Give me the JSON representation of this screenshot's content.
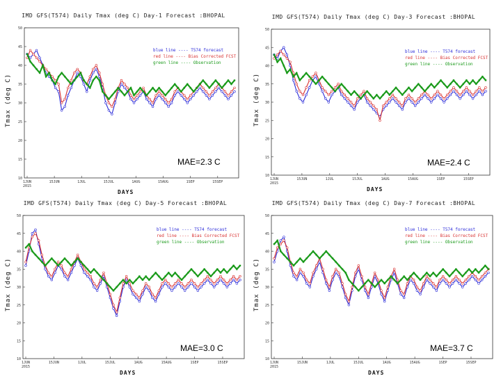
{
  "chart_data": [
    {
      "type": "line",
      "title": "IMD GFS(T574) Daily Tmax (deg C) Day-1 Forecast :BHOPAL",
      "ylabel": "Tmax  (deg C)",
      "xlabel": "DAYS",
      "ylim": [
        10,
        50
      ],
      "yticks": [
        "50",
        "45",
        "40",
        "35",
        "30",
        "25",
        "20",
        "15"
      ],
      "xticks": [
        "1JUN\n2015",
        "15JUN",
        "1JUL",
        "15JUL",
        "1AUG",
        "15AUG",
        "1SEP",
        "15SEP"
      ],
      "mae": "MAE=2.3 C",
      "legend": [
        {
          "name": "blue line",
          "desc": "T574 forecast",
          "color": "#2a2ad8"
        },
        {
          "name": "red line",
          "desc": "Bias Corrected FCST",
          "color": "#d83030"
        },
        {
          "name": "green line",
          "desc": "Observation",
          "color": "#1a9a1a"
        }
      ],
      "series": [
        {
          "name": "T574 forecast",
          "color": "#2a2ad8",
          "values": [
            43,
            42,
            43,
            44,
            42,
            40,
            38,
            37,
            36,
            34,
            33,
            28,
            29,
            32,
            34,
            36,
            38,
            37,
            35,
            33,
            36,
            38,
            39,
            37,
            34,
            30,
            28,
            27,
            30,
            33,
            35,
            34,
            33,
            31,
            30,
            31,
            32,
            33,
            31,
            30,
            29,
            31,
            32,
            31,
            30,
            29,
            30,
            32,
            33,
            32,
            31,
            30,
            31,
            32,
            33,
            34,
            33,
            32,
            31,
            32,
            33,
            34,
            33,
            32,
            31,
            32,
            33
          ]
        },
        {
          "name": "Bias Corrected FCST",
          "color": "#d83030",
          "values": [
            42,
            44,
            43,
            42,
            41,
            40,
            39,
            38,
            37,
            36,
            35,
            30,
            31,
            34,
            36,
            38,
            39,
            38,
            36,
            35,
            37,
            39,
            40,
            38,
            35,
            32,
            30,
            29,
            31,
            34,
            36,
            35,
            34,
            32,
            31,
            32,
            33,
            34,
            32,
            31,
            30,
            32,
            33,
            32,
            31,
            30,
            31,
            33,
            34,
            33,
            32,
            31,
            32,
            33,
            34,
            35,
            34,
            33,
            32,
            33,
            34,
            35,
            34,
            33,
            32,
            33,
            34
          ]
        },
        {
          "name": "Observation",
          "color": "#1a9a1a",
          "values": [
            43,
            41,
            40,
            39,
            38,
            40,
            37,
            38,
            36,
            35,
            37,
            38,
            37,
            36,
            35,
            36,
            37,
            38,
            36,
            35,
            34,
            36,
            37,
            36,
            33,
            32,
            31,
            32,
            33,
            34,
            33,
            32,
            33,
            34,
            32,
            33,
            34,
            33,
            32,
            33,
            34,
            33,
            34,
            33,
            32,
            33,
            34,
            35,
            34,
            33,
            34,
            35,
            34,
            33,
            34,
            35,
            36,
            35,
            34,
            35,
            36,
            35,
            34,
            35,
            36,
            35,
            36
          ]
        }
      ]
    },
    {
      "type": "line",
      "title": "IMD GFS(T574) Daily Tmax (deg C) Day-3 Forecast :BHOPAL",
      "ylabel": "Tmax  (deg C)",
      "xlabel": "DAYS",
      "ylim": [
        10,
        50
      ],
      "yticks": [
        "50",
        "45",
        "40",
        "35",
        "30",
        "25",
        "20",
        "15"
      ],
      "xticks": [
        "1JUN\n2015",
        "15JUN",
        "1JUL",
        "15JUL",
        "1AUG",
        "15AUG",
        "1SEP",
        "15SEP"
      ],
      "mae": "MAE=2.4 C",
      "legend": [
        {
          "name": "blue line",
          "desc": "T574 forecast",
          "color": "#2a2ad8"
        },
        {
          "name": "red line",
          "desc": "Bias Corrected FCST",
          "color": "#d83030"
        },
        {
          "name": "green line",
          "desc": "Observation",
          "color": "#1a9a1a"
        }
      ],
      "series": [
        {
          "name": "T574 forecast",
          "color": "#2a2ad8",
          "values": [
            43,
            42,
            44,
            45,
            43,
            40,
            36,
            33,
            31,
            30,
            32,
            34,
            36,
            37,
            35,
            33,
            31,
            30,
            32,
            33,
            34,
            32,
            31,
            30,
            29,
            28,
            30,
            31,
            32,
            30,
            29,
            28,
            27,
            26,
            28,
            29,
            30,
            31,
            30,
            29,
            28,
            30,
            31,
            30,
            29,
            30,
            31,
            32,
            31,
            30,
            31,
            32,
            31,
            30,
            31,
            32,
            33,
            32,
            31,
            32,
            33,
            32,
            31,
            32,
            33,
            32,
            33
          ]
        },
        {
          "name": "Bias Corrected FCST",
          "color": "#d83030",
          "values": [
            42,
            43,
            44,
            43,
            42,
            41,
            38,
            35,
            33,
            32,
            34,
            36,
            37,
            38,
            36,
            34,
            33,
            32,
            33,
            34,
            35,
            33,
            32,
            31,
            30,
            29,
            31,
            32,
            33,
            31,
            30,
            29,
            28,
            25,
            29,
            30,
            31,
            32,
            31,
            30,
            29,
            31,
            32,
            31,
            30,
            31,
            32,
            33,
            32,
            31,
            32,
            33,
            32,
            31,
            32,
            33,
            34,
            33,
            32,
            33,
            34,
            33,
            32,
            33,
            34,
            33,
            34
          ]
        },
        {
          "name": "Observation",
          "color": "#1a9a1a",
          "values": [
            43,
            41,
            42,
            40,
            38,
            39,
            37,
            38,
            36,
            37,
            38,
            37,
            36,
            35,
            36,
            37,
            36,
            35,
            34,
            33,
            34,
            35,
            34,
            33,
            32,
            33,
            32,
            31,
            32,
            33,
            32,
            31,
            32,
            31,
            32,
            33,
            32,
            33,
            34,
            33,
            32,
            33,
            34,
            33,
            34,
            35,
            34,
            33,
            34,
            35,
            34,
            35,
            36,
            35,
            34,
            35,
            36,
            35,
            34,
            35,
            36,
            35,
            36,
            35,
            36,
            37,
            36
          ]
        }
      ]
    },
    {
      "type": "line",
      "title": "IMD GFS(T574) Daily Tmax (deg C) Day-5 Forecast :BHOPAL",
      "ylabel": "Tmax  (deg C)",
      "xlabel": "DAYS",
      "ylim": [
        10,
        50
      ],
      "yticks": [
        "50",
        "45",
        "40",
        "35",
        "30",
        "25",
        "20",
        "15"
      ],
      "xticks": [
        "1JUN\n2015",
        "15JUN",
        "1JUL",
        "15JUL",
        "1AUG",
        "15AUG",
        "1SEP",
        "15SEP"
      ],
      "mae": "MAE=3.0 C",
      "legend": [
        {
          "name": "blue line",
          "desc": "T574 forecast",
          "color": "#2a2ad8"
        },
        {
          "name": "red line",
          "desc": "Bias Corrected FCST",
          "color": "#d83030"
        },
        {
          "name": "green line",
          "desc": "Observation",
          "color": "#1a9a1a"
        }
      ],
      "series": [
        {
          "name": "T574 forecast",
          "color": "#2a2ad8",
          "values": [
            36,
            40,
            45,
            46,
            42,
            38,
            35,
            33,
            32,
            34,
            36,
            35,
            33,
            32,
            34,
            36,
            38,
            36,
            34,
            33,
            32,
            30,
            29,
            31,
            33,
            30,
            27,
            24,
            22,
            26,
            30,
            32,
            30,
            28,
            27,
            26,
            28,
            30,
            29,
            27,
            26,
            28,
            30,
            31,
            30,
            29,
            30,
            31,
            30,
            29,
            30,
            31,
            30,
            29,
            30,
            31,
            32,
            31,
            30,
            31,
            32,
            31,
            30,
            31,
            32,
            31,
            32
          ]
        },
        {
          "name": "Bias Corrected FCST",
          "color": "#d83030",
          "values": [
            37,
            41,
            44,
            45,
            43,
            39,
            36,
            34,
            33,
            35,
            37,
            36,
            34,
            33,
            35,
            37,
            39,
            37,
            35,
            34,
            33,
            31,
            30,
            32,
            34,
            31,
            28,
            25,
            23,
            27,
            31,
            33,
            31,
            29,
            28,
            27,
            29,
            31,
            30,
            28,
            27,
            29,
            31,
            32,
            31,
            30,
            31,
            32,
            31,
            30,
            31,
            32,
            31,
            30,
            31,
            32,
            33,
            32,
            31,
            32,
            33,
            32,
            31,
            32,
            33,
            32,
            33
          ]
        },
        {
          "name": "Observation",
          "color": "#1a9a1a",
          "values": [
            41,
            42,
            40,
            39,
            38,
            37,
            36,
            37,
            38,
            37,
            36,
            37,
            38,
            37,
            36,
            37,
            38,
            37,
            36,
            35,
            34,
            35,
            34,
            33,
            32,
            31,
            30,
            29,
            30,
            31,
            32,
            31,
            32,
            31,
            32,
            33,
            32,
            33,
            32,
            33,
            34,
            33,
            32,
            33,
            34,
            33,
            34,
            33,
            32,
            33,
            34,
            35,
            34,
            33,
            34,
            35,
            34,
            33,
            34,
            35,
            34,
            35,
            34,
            35,
            36,
            35,
            36
          ]
        }
      ]
    },
    {
      "type": "line",
      "title": "IMD GFS(T574) Daily Tmax (deg C) Day-7 Forecast :BHOPAL",
      "ylabel": "Tmax  (deg C)",
      "xlabel": "DAYS",
      "ylim": [
        10,
        50
      ],
      "yticks": [
        "50",
        "45",
        "40",
        "35",
        "30",
        "25",
        "20",
        "15"
      ],
      "xticks": [
        "1JUN\n2015",
        "15JUN",
        "1JUL",
        "15JUL",
        "1AUG",
        "15AUG",
        "1SEP",
        "15SEP"
      ],
      "mae": "MAE=3.7 C",
      "legend": [
        {
          "name": "blue line",
          "desc": "T574 forecast",
          "color": "#2a2ad8"
        },
        {
          "name": "red line",
          "desc": "Bias Corrected FCST",
          "color": "#d83030"
        },
        {
          "name": "green line",
          "desc": "Observation",
          "color": "#1a9a1a"
        }
      ],
      "series": [
        {
          "name": "T574 forecast",
          "color": "#2a2ad8",
          "values": [
            37,
            40,
            43,
            44,
            40,
            36,
            33,
            32,
            34,
            33,
            31,
            30,
            33,
            35,
            37,
            34,
            31,
            29,
            32,
            34,
            33,
            30,
            27,
            25,
            29,
            33,
            35,
            32,
            29,
            27,
            30,
            33,
            31,
            28,
            26,
            29,
            32,
            34,
            31,
            28,
            27,
            30,
            32,
            31,
            29,
            28,
            30,
            32,
            31,
            30,
            29,
            31,
            32,
            31,
            30,
            31,
            32,
            31,
            30,
            31,
            32,
            33,
            32,
            31,
            32,
            33,
            34
          ]
        },
        {
          "name": "Bias Corrected FCST",
          "color": "#d83030",
          "values": [
            38,
            41,
            42,
            43,
            41,
            37,
            34,
            33,
            35,
            34,
            32,
            31,
            34,
            36,
            38,
            35,
            32,
            30,
            33,
            35,
            34,
            31,
            28,
            26,
            30,
            34,
            36,
            33,
            30,
            28,
            31,
            34,
            32,
            29,
            27,
            30,
            33,
            35,
            32,
            29,
            28,
            31,
            33,
            32,
            30,
            29,
            31,
            33,
            32,
            31,
            30,
            32,
            33,
            32,
            31,
            32,
            33,
            32,
            31,
            32,
            33,
            34,
            33,
            32,
            33,
            34,
            35
          ]
        },
        {
          "name": "Observation",
          "color": "#1a9a1a",
          "values": [
            42,
            43,
            40,
            39,
            38,
            37,
            36,
            37,
            38,
            37,
            38,
            39,
            40,
            39,
            38,
            39,
            40,
            39,
            38,
            37,
            36,
            35,
            34,
            32,
            31,
            30,
            29,
            30,
            31,
            32,
            31,
            30,
            31,
            32,
            31,
            32,
            33,
            32,
            31,
            32,
            33,
            32,
            33,
            34,
            33,
            32,
            33,
            34,
            33,
            34,
            33,
            34,
            35,
            34,
            33,
            34,
            35,
            34,
            33,
            34,
            35,
            34,
            35,
            34,
            35,
            36,
            35
          ]
        }
      ]
    }
  ]
}
